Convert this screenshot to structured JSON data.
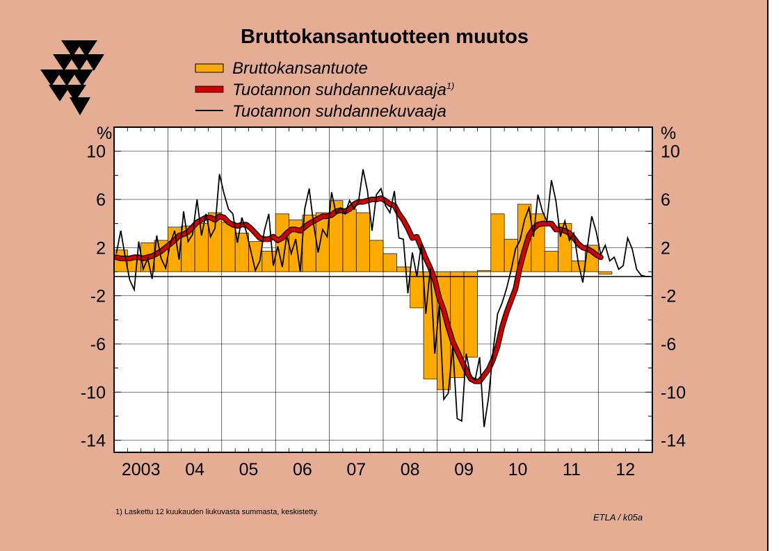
{
  "chart_data": {
    "type": "bar+line",
    "title": "Bruttokansantuotteen muutos",
    "ylabel_left": "%",
    "ylabel_right": "%",
    "ylim": [
      -15,
      12
    ],
    "yticks": [
      10,
      6,
      2,
      -2,
      -6,
      -10,
      -14
    ],
    "ytick_labels": [
      "10",
      "6",
      "2",
      "-2",
      "-6",
      "-10",
      "-14"
    ],
    "x_year_labels": [
      "2003",
      "04",
      "05",
      "06",
      "07",
      "08",
      "09",
      "10",
      "11",
      "12"
    ],
    "grid": true,
    "legend": [
      {
        "label": "Bruttokansantuote",
        "superscript": "",
        "color": "#ffaa00",
        "kind": "bar"
      },
      {
        "label": "Tuotannon suhdannekuvaaja",
        "superscript": "1)",
        "color": "#cc0000",
        "kind": "thick-line"
      },
      {
        "label": "Tuotannon suhdannekuvaaja",
        "superscript": "",
        "color": "#000000",
        "kind": "thin-line"
      }
    ],
    "series": [
      {
        "name": "Bruttokansantuote",
        "kind": "quarterly-bars",
        "color": "#ffaa00",
        "x_start": "2003Q1",
        "values": [
          1.8,
          1.1,
          2.4,
          2.6,
          3.7,
          3.8,
          4.0,
          4.9,
          4.1,
          3.2,
          2.5,
          1.7,
          4.8,
          4.3,
          4.7,
          4.9,
          5.9,
          5.2,
          4.9,
          2.6,
          1.5,
          0.4,
          -3.0,
          -8.9,
          -9.8,
          -8.8,
          -7.1,
          0.1,
          4.8,
          2.7,
          5.6,
          4.8,
          1.7,
          4.0,
          0.9,
          2.2,
          -0.2
        ]
      },
      {
        "name": "Tuotannon suhdannekuvaaja",
        "kind": "monthly-thick-line",
        "color": "#cc0000",
        "x_start": "2003-01",
        "values": [
          1.2,
          1.1,
          1.1,
          1.1,
          1.2,
          1.2,
          1.1,
          1.2,
          1.3,
          1.5,
          1.7,
          2.0,
          2.3,
          2.6,
          3.0,
          3.1,
          3.3,
          3.7,
          4.1,
          4.3,
          4.5,
          4.5,
          4.3,
          4.6,
          4.5,
          4.1,
          3.9,
          3.8,
          3.9,
          3.9,
          3.6,
          3.2,
          2.8,
          2.7,
          2.7,
          2.9,
          2.6,
          2.8,
          3.2,
          3.5,
          3.5,
          3.4,
          3.7,
          4.0,
          4.2,
          4.4,
          4.6,
          4.6,
          4.7,
          5.0,
          5.1,
          5.0,
          5.2,
          5.6,
          5.8,
          5.8,
          5.9,
          6.0,
          6.0,
          6.1,
          5.9,
          5.6,
          5.5,
          4.8,
          4.3,
          3.6,
          2.8,
          2.9,
          2.0,
          1.1,
          0.3,
          -0.7,
          -2.2,
          -3.2,
          -4.6,
          -5.8,
          -6.6,
          -7.4,
          -8.2,
          -8.9,
          -9.1,
          -9.1,
          -8.6,
          -8.1,
          -7.3,
          -6.2,
          -4.6,
          -3.4,
          -2.4,
          -1.4,
          0.4,
          1.8,
          3.0,
          3.6,
          3.9,
          4.0,
          4.0,
          4.0,
          3.5,
          3.5,
          3.4,
          3.2,
          2.8,
          2.3,
          2.0,
          1.9,
          1.7,
          1.4,
          1.2
        ]
      },
      {
        "name": "Tuotannon suhdannekuvaaja",
        "kind": "monthly-thin-line",
        "color": "#000000",
        "x_start": "2003-01",
        "values": [
          1.5,
          3.4,
          1.2,
          -0.7,
          -1.5,
          2.5,
          0.2,
          1.1,
          -0.6,
          3.0,
          1.1,
          0.3,
          2.3,
          3.4,
          1.0,
          5.0,
          2.5,
          3.1,
          6.0,
          3.0,
          4.8,
          2.9,
          3.6,
          8.1,
          6.5,
          5.2,
          4.8,
          2.4,
          4.5,
          3.3,
          1.7,
          0.1,
          0.9,
          3.4,
          4.8,
          0.5,
          2.1,
          0.4,
          3.0,
          1.5,
          2.7,
          0.0,
          5.2,
          6.9,
          3.9,
          1.6,
          3.5,
          2.9,
          6.6,
          4.8,
          5.3,
          4.8,
          5.9,
          5.2,
          5.8,
          8.5,
          6.7,
          3.4,
          6.4,
          6.9,
          5.5,
          4.9,
          6.7,
          2.8,
          2.7,
          -1.8,
          1.6,
          -0.4,
          2.3,
          -3.5,
          0.3,
          -6.8,
          -2.8,
          -10.6,
          -10.1,
          -6.2,
          -12.2,
          -12.4,
          -6.8,
          -8.7,
          -9.0,
          -7.1,
          -12.9,
          -10.4,
          -6.6,
          -3.5,
          -2.6,
          -1.4,
          0.1,
          1.9,
          2.6,
          4.3,
          5.3,
          2.9,
          6.4,
          5.0,
          4.2,
          7.6,
          5.9,
          2.9,
          4.2,
          2.6,
          3.2,
          0.7,
          -0.9,
          2.0,
          4.6,
          3.3,
          1.4,
          2.2,
          0.9,
          1.2,
          0.2,
          0.5,
          2.8,
          1.9,
          0.2,
          -0.3,
          -0.4,
          -0.4
        ]
      }
    ],
    "footnote": "1)  Laskettu 12 kuukauden liukuvasta summasta, keskistetty.",
    "source": "ETLA / k05a"
  },
  "colors": {
    "background": "#e4ad94",
    "plot_area": "#ffffff",
    "bar_fill": "#ffaa00",
    "thick_line": "#cc0000",
    "thin_line": "#000000"
  },
  "logo": {
    "name": "ETLA logo"
  }
}
